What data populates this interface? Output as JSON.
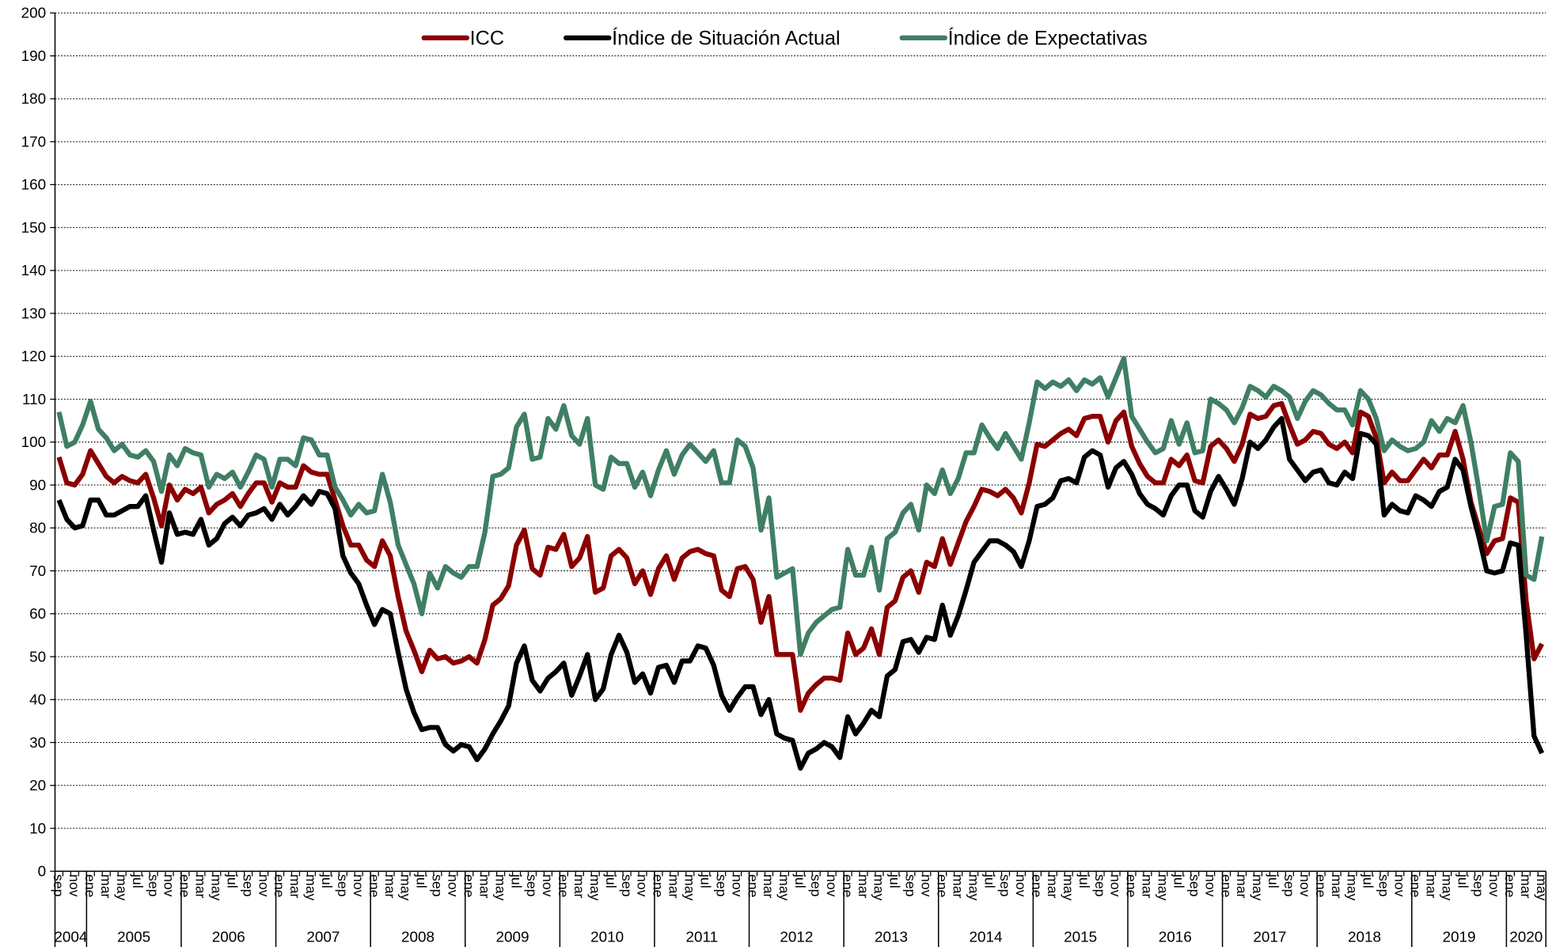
{
  "chart_data": {
    "type": "line",
    "categories": [
      "sep",
      null,
      "nov",
      null,
      "ene",
      null,
      "mar",
      null,
      "may",
      null,
      "jul",
      null,
      "sep",
      null,
      "nov",
      null,
      "ene",
      null,
      "mar",
      null,
      "may",
      null,
      "jul",
      null,
      "sep",
      null,
      "nov",
      null,
      "ene",
      null,
      "mar",
      null,
      "may",
      null,
      "jul",
      null,
      "sep",
      null,
      "nov",
      null,
      "ene",
      null,
      "mar",
      null,
      "may",
      null,
      "jul",
      null,
      "sep",
      null,
      "nov",
      null,
      "ene",
      null,
      "mar",
      null,
      "may",
      null,
      "jul",
      null,
      "sep",
      null,
      "nov",
      null,
      "ene",
      null,
      "mar",
      null,
      "may",
      null,
      "jul",
      null,
      "sep",
      null,
      "nov",
      null,
      "ene",
      null,
      "mar",
      null,
      "may",
      null,
      "jul",
      null,
      "sep",
      null,
      "nov",
      null,
      "ene",
      null,
      "mar",
      null,
      "may",
      null,
      "jul",
      null,
      "sep",
      null,
      "nov",
      null,
      "ene",
      null,
      "mar",
      null,
      "may",
      null,
      "jul",
      null,
      "sep",
      null,
      "nov",
      null,
      "ene",
      null,
      "mar",
      null,
      "may",
      null,
      "jul",
      null,
      "sep",
      null,
      "nov",
      null,
      "ene",
      null,
      "mar",
      null,
      "may",
      null,
      "jul",
      null,
      "sep",
      null,
      "nov",
      null,
      "ene",
      null,
      "mar",
      null,
      "may",
      null,
      "jul",
      null,
      "sep",
      null,
      "nov",
      null,
      "ene",
      null,
      "mar",
      null,
      "may",
      null,
      "jul",
      null,
      "sep",
      null,
      "nov",
      null,
      "ene",
      null,
      "mar",
      null,
      "may",
      null,
      "jul",
      null,
      "sep",
      null,
      "nov",
      null,
      "ene",
      null,
      "mar",
      null,
      "may",
      null,
      "jul",
      null,
      "sep",
      null,
      "nov",
      null,
      "ene",
      null,
      "mar",
      null,
      "may"
    ],
    "years": [
      "2004",
      "2005",
      "2006",
      "2007",
      "2008",
      "2009",
      "2010",
      "2011",
      "2012",
      "2013",
      "2014",
      "2015",
      "2016",
      "2017",
      "2018",
      "2019",
      "2020"
    ],
    "ylim": [
      0,
      200
    ],
    "yticks": [
      0,
      10,
      20,
      30,
      40,
      50,
      60,
      70,
      80,
      90,
      100,
      110,
      120,
      130,
      140,
      150,
      160,
      170,
      180,
      190,
      200
    ],
    "grid": true,
    "legend": "top",
    "series": [
      {
        "name": "ICC",
        "color": "#8b0000",
        "values": [
          96.5,
          90.5,
          90,
          92.5,
          98,
          95,
          92,
          90.5,
          92,
          91,
          90.5,
          92.5,
          87,
          80.5,
          90,
          86.5,
          89,
          88,
          89.5,
          83.5,
          85.5,
          86.5,
          88,
          85,
          88,
          90.5,
          90.5,
          86,
          90.5,
          89.5,
          89.5,
          94.5,
          93,
          92.5,
          92.5,
          86.5,
          80.5,
          76,
          76,
          72.5,
          71,
          77,
          73.5,
          64,
          56,
          51.5,
          46.5,
          51.5,
          49.5,
          50,
          48.5,
          49,
          50,
          48.5,
          54,
          62,
          63.5,
          66.5,
          76,
          79.5,
          70.5,
          69,
          75.5,
          75,
          78.5,
          71,
          73,
          78,
          65,
          66,
          73.5,
          75,
          73,
          67,
          70,
          64.5,
          70.5,
          73.5,
          68,
          73,
          74.5,
          75,
          74,
          73.5,
          65.5,
          64,
          70.5,
          71,
          68,
          58,
          64,
          50.5,
          50.5,
          50.5,
          37.5,
          41.5,
          43.5,
          45,
          45,
          44.5,
          55.5,
          50.5,
          52,
          56.5,
          50.5,
          61.5,
          63,
          68.5,
          70,
          65,
          72,
          71,
          77.5,
          71.5,
          76.5,
          81.5,
          85,
          89,
          88.5,
          87.5,
          89,
          87,
          83.5,
          90.5,
          99.5,
          99,
          100.5,
          102,
          103,
          101.5,
          105.5,
          106,
          106,
          100,
          105,
          107,
          99,
          95,
          92,
          90.5,
          90.5,
          96,
          94.5,
          97,
          91,
          90.5,
          99,
          100.5,
          98.5,
          95.5,
          99.5,
          106.5,
          105.5,
          106,
          108.5,
          109,
          104,
          99.5,
          100.5,
          102.5,
          102,
          99.5,
          98.5,
          100,
          97.5,
          107,
          106,
          101,
          90.5,
          93,
          91,
          91,
          93.5,
          96,
          94,
          97,
          97,
          102.5,
          96,
          86,
          80,
          74,
          77,
          77.5,
          87,
          86,
          63,
          49.5,
          53
        ]
      },
      {
        "name": "Índice de Situación Actual",
        "color": "#000000",
        "values": [
          86.5,
          82,
          80,
          80.5,
          86.5,
          86.5,
          83,
          83,
          84,
          85,
          85,
          87.5,
          79.5,
          72,
          83.5,
          78.5,
          79,
          78.5,
          82,
          76,
          77.5,
          81,
          82.5,
          80.5,
          83,
          83.5,
          84.5,
          82,
          85.5,
          83,
          85,
          87.5,
          85.5,
          88.5,
          88,
          84.5,
          73.5,
          69.5,
          67,
          62,
          57.5,
          61,
          60,
          51,
          42.5,
          37,
          33,
          33.5,
          33.5,
          29.5,
          28,
          29.5,
          29,
          26,
          28.5,
          32,
          35,
          38.5,
          48.5,
          52.5,
          44.5,
          42,
          45,
          46.5,
          48.5,
          41,
          45.5,
          50.5,
          40,
          42.5,
          50.5,
          55,
          51,
          44,
          46,
          41.5,
          47.5,
          48,
          44,
          49,
          49,
          52.5,
          52,
          48,
          41,
          37.5,
          40.5,
          43,
          43,
          36.5,
          40,
          32,
          31,
          30.5,
          24,
          27.5,
          28.5,
          30,
          29,
          26.5,
          36,
          32,
          34.5,
          37.5,
          36,
          45.5,
          47,
          53.5,
          54,
          51,
          54.5,
          54,
          62,
          55,
          59.5,
          65.5,
          72,
          74.5,
          77,
          77,
          76,
          74.5,
          71,
          77,
          85,
          85.5,
          87,
          91,
          91.5,
          90.5,
          96.5,
          98,
          97,
          89.5,
          94,
          95.5,
          92.5,
          88,
          85.5,
          84.5,
          83,
          87.5,
          90,
          90,
          84,
          82.5,
          88.5,
          92,
          89,
          85.5,
          91.5,
          100,
          98.5,
          100.5,
          103.5,
          105.5,
          96,
          93.5,
          91,
          93,
          93.5,
          90.5,
          90,
          93,
          91.5,
          102,
          101.5,
          99.5,
          83,
          85.5,
          84,
          83.5,
          87.5,
          86.5,
          85,
          88.5,
          89.5,
          96,
          93.5,
          85,
          78,
          70,
          69.5,
          70,
          76.5,
          76,
          55,
          31.5,
          27.5
        ]
      },
      {
        "name": "Índice de Expectativas",
        "color": "#3f7f64",
        "values": [
          107,
          99,
          100,
          104,
          109.5,
          103,
          101,
          98,
          99.5,
          97,
          96.5,
          98,
          95.5,
          88.5,
          97,
          94.5,
          98.5,
          97.5,
          97,
          89.5,
          92.5,
          91.5,
          93,
          89.5,
          93,
          97,
          96,
          89.5,
          96,
          96,
          94.5,
          101,
          100.5,
          97,
          97,
          89.5,
          86.5,
          83,
          85.5,
          83.5,
          84,
          92.5,
          86,
          76,
          71.5,
          67,
          60,
          69.5,
          66,
          71,
          69.5,
          68.5,
          71,
          71,
          79,
          92,
          92.5,
          94,
          103.5,
          106.5,
          96,
          96.5,
          105.5,
          103,
          108.5,
          101.5,
          99.5,
          105.5,
          90,
          89,
          96.5,
          95,
          95,
          89.5,
          93,
          87.5,
          93.5,
          98,
          92.5,
          97,
          99.5,
          97.5,
          95.5,
          98,
          90.5,
          90.5,
          100.5,
          99,
          94,
          79.5,
          87,
          68.5,
          69.5,
          70.5,
          50.5,
          55.5,
          58,
          59.5,
          61,
          61.5,
          75,
          69,
          69,
          75.5,
          65.5,
          77.5,
          79,
          83.5,
          85.5,
          79.5,
          90,
          88,
          93.5,
          88,
          91.5,
          97.5,
          97.5,
          104,
          101,
          98.5,
          102,
          99,
          96,
          104.5,
          114,
          112.5,
          114,
          113,
          114.5,
          112,
          114.5,
          113.5,
          115,
          110.5,
          115,
          119.5,
          106,
          103,
          100,
          97.5,
          98.5,
          105,
          99.5,
          104.5,
          97.5,
          98,
          110,
          109,
          107.5,
          104.5,
          108,
          113,
          112,
          110.5,
          113,
          112,
          110.5,
          105.5,
          109.5,
          112,
          111,
          109,
          107.5,
          107.5,
          104,
          112,
          110,
          105.5,
          98,
          100.5,
          99,
          98,
          98.5,
          100,
          105,
          102.5,
          105.5,
          104.5,
          108.5,
          100,
          89,
          77,
          85,
          85.5,
          97.5,
          95.5,
          69,
          68,
          78
        ]
      }
    ]
  }
}
